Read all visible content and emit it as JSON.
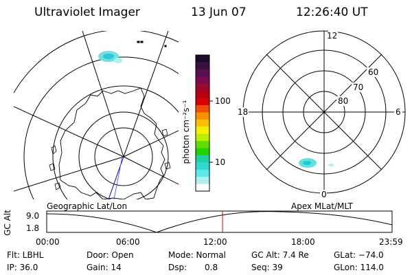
{
  "header": {
    "title": "Ultraviolet Imager",
    "date": "13 Jun 07",
    "time": "12:26:40 UT"
  },
  "colorbar": {
    "label": "photon cm⁻²s⁻¹",
    "ticks": [
      "100",
      "10"
    ],
    "colors": [
      "#1a0a2a",
      "#3a1040",
      "#5a1050",
      "#7a0a50",
      "#9a0a30",
      "#b80010",
      "#d80000",
      "#f05000",
      "#f89000",
      "#f8c000",
      "#f0f000",
      "#b8f000",
      "#60e000",
      "#20d000",
      "#20d0a0",
      "#30d8d0",
      "#60e8e8",
      "#b0f0f0",
      "#ffffff"
    ]
  },
  "left_panel": {
    "caption": "Geographic Lat/Lon"
  },
  "right_panel": {
    "caption": "Apex MLat/MLT",
    "clock_labels": {
      "top": "12",
      "left": "18",
      "right": "6",
      "bottom": "0"
    },
    "lat_labels": [
      "60",
      "70",
      "80"
    ]
  },
  "timeline": {
    "axis_title": "GC Alt",
    "y_ticks": [
      "9.0",
      "1.8"
    ],
    "x_ticks": [
      "00:00",
      "06:00",
      "12:00",
      "18:00",
      "23:59"
    ],
    "marker_color": "#e00000"
  },
  "footer": {
    "filter": "Flt: LBHL",
    "door": "Door: Open",
    "mode": "Mode: Normal",
    "gc_alt": "GC Alt: 7.4 Re",
    "glat": "GLat: −74.0",
    "ip": "IP: 36.0",
    "gain": "Gain: 14",
    "dsp_label": "Dsp:",
    "dsp_value": "0.8",
    "seq": "Seq: 39",
    "glon": "GLon: 114.0"
  }
}
